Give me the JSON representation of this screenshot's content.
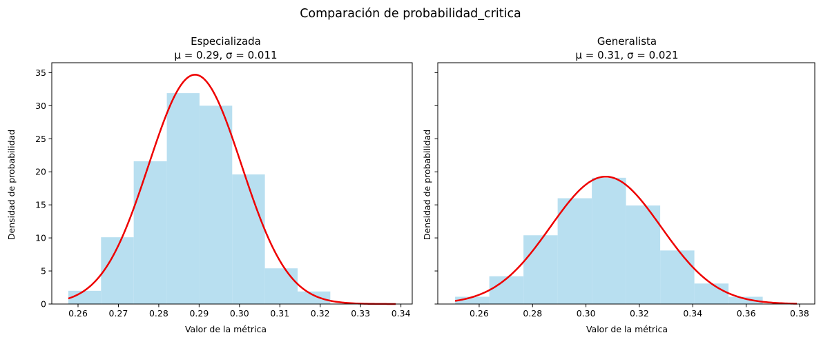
{
  "figure": {
    "suptitle": "Comparación de probabilidad_critica"
  },
  "chart_data": [
    {
      "type": "histogram",
      "title": "Especializada",
      "subtitle": "μ = 0.29, σ = 0.011",
      "xlabel": "Valor de la métrica",
      "ylabel": "Densidad de probabilidad",
      "xlim": [
        0.2535,
        0.3428
      ],
      "ylim": [
        0,
        36.5
      ],
      "xticks": [
        0.26,
        0.27,
        0.28,
        0.29,
        0.3,
        0.31,
        0.32,
        0.33,
        0.34
      ],
      "xtick_labels": [
        "0.26",
        "0.27",
        "0.28",
        "0.29",
        "0.30",
        "0.31",
        "0.32",
        "0.33",
        "0.34"
      ],
      "yticks": [
        0,
        5,
        10,
        15,
        20,
        25,
        30,
        35
      ],
      "ytick_labels": [
        "0",
        "5",
        "10",
        "15",
        "20",
        "25",
        "30",
        "35"
      ],
      "show_ytick_labels": true,
      "bins": [
        {
          "x0": 0.2576,
          "x1": 0.2657,
          "density": 2.0
        },
        {
          "x0": 0.2657,
          "x1": 0.2738,
          "density": 10.1
        },
        {
          "x0": 0.2738,
          "x1": 0.282,
          "density": 21.6
        },
        {
          "x0": 0.282,
          "x1": 0.2901,
          "density": 31.9
        },
        {
          "x0": 0.2901,
          "x1": 0.2982,
          "density": 30.0
        },
        {
          "x0": 0.2982,
          "x1": 0.3063,
          "density": 19.6
        },
        {
          "x0": 0.3063,
          "x1": 0.3144,
          "density": 5.4
        },
        {
          "x0": 0.3144,
          "x1": 0.3225,
          "density": 1.9
        }
      ],
      "fit": {
        "dist": "normal",
        "mu": 0.289,
        "sigma": 0.0115,
        "x_range": [
          0.2576,
          0.3387
        ]
      },
      "colors": {
        "bars": "#b8dff0",
        "curve": "#ee0000"
      },
      "grid": false
    },
    {
      "type": "histogram",
      "title": "Generalista",
      "subtitle": "μ = 0.31, σ = 0.021",
      "xlabel": "Valor de la métrica",
      "ylabel": "Densidad de probabilidad",
      "xlim": [
        0.2445,
        0.3857
      ],
      "ylim": [
        0,
        36.5
      ],
      "xticks": [
        0.26,
        0.28,
        0.3,
        0.32,
        0.34,
        0.36,
        0.38
      ],
      "xtick_labels": [
        "0.26",
        "0.28",
        "0.30",
        "0.32",
        "0.34",
        "0.36",
        "0.38"
      ],
      "yticks": [
        0,
        5,
        10,
        15,
        20,
        25,
        30,
        35
      ],
      "ytick_labels": [],
      "show_ytick_labels": false,
      "bins": [
        {
          "x0": 0.251,
          "x1": 0.2638,
          "density": 1.1
        },
        {
          "x0": 0.2638,
          "x1": 0.2766,
          "density": 4.2
        },
        {
          "x0": 0.2766,
          "x1": 0.2894,
          "density": 10.4
        },
        {
          "x0": 0.2894,
          "x1": 0.3022,
          "density": 16.0
        },
        {
          "x0": 0.3022,
          "x1": 0.315,
          "density": 19.1
        },
        {
          "x0": 0.315,
          "x1": 0.3278,
          "density": 14.9
        },
        {
          "x0": 0.3278,
          "x1": 0.3406,
          "density": 8.1
        },
        {
          "x0": 0.3406,
          "x1": 0.3534,
          "density": 3.1
        },
        {
          "x0": 0.3534,
          "x1": 0.3662,
          "density": 1.1
        }
      ],
      "fit": {
        "dist": "normal",
        "mu": 0.3074,
        "sigma": 0.0207,
        "x_range": [
          0.251,
          0.379
        ]
      },
      "colors": {
        "bars": "#b8dff0",
        "curve": "#ee0000"
      },
      "grid": false
    }
  ]
}
